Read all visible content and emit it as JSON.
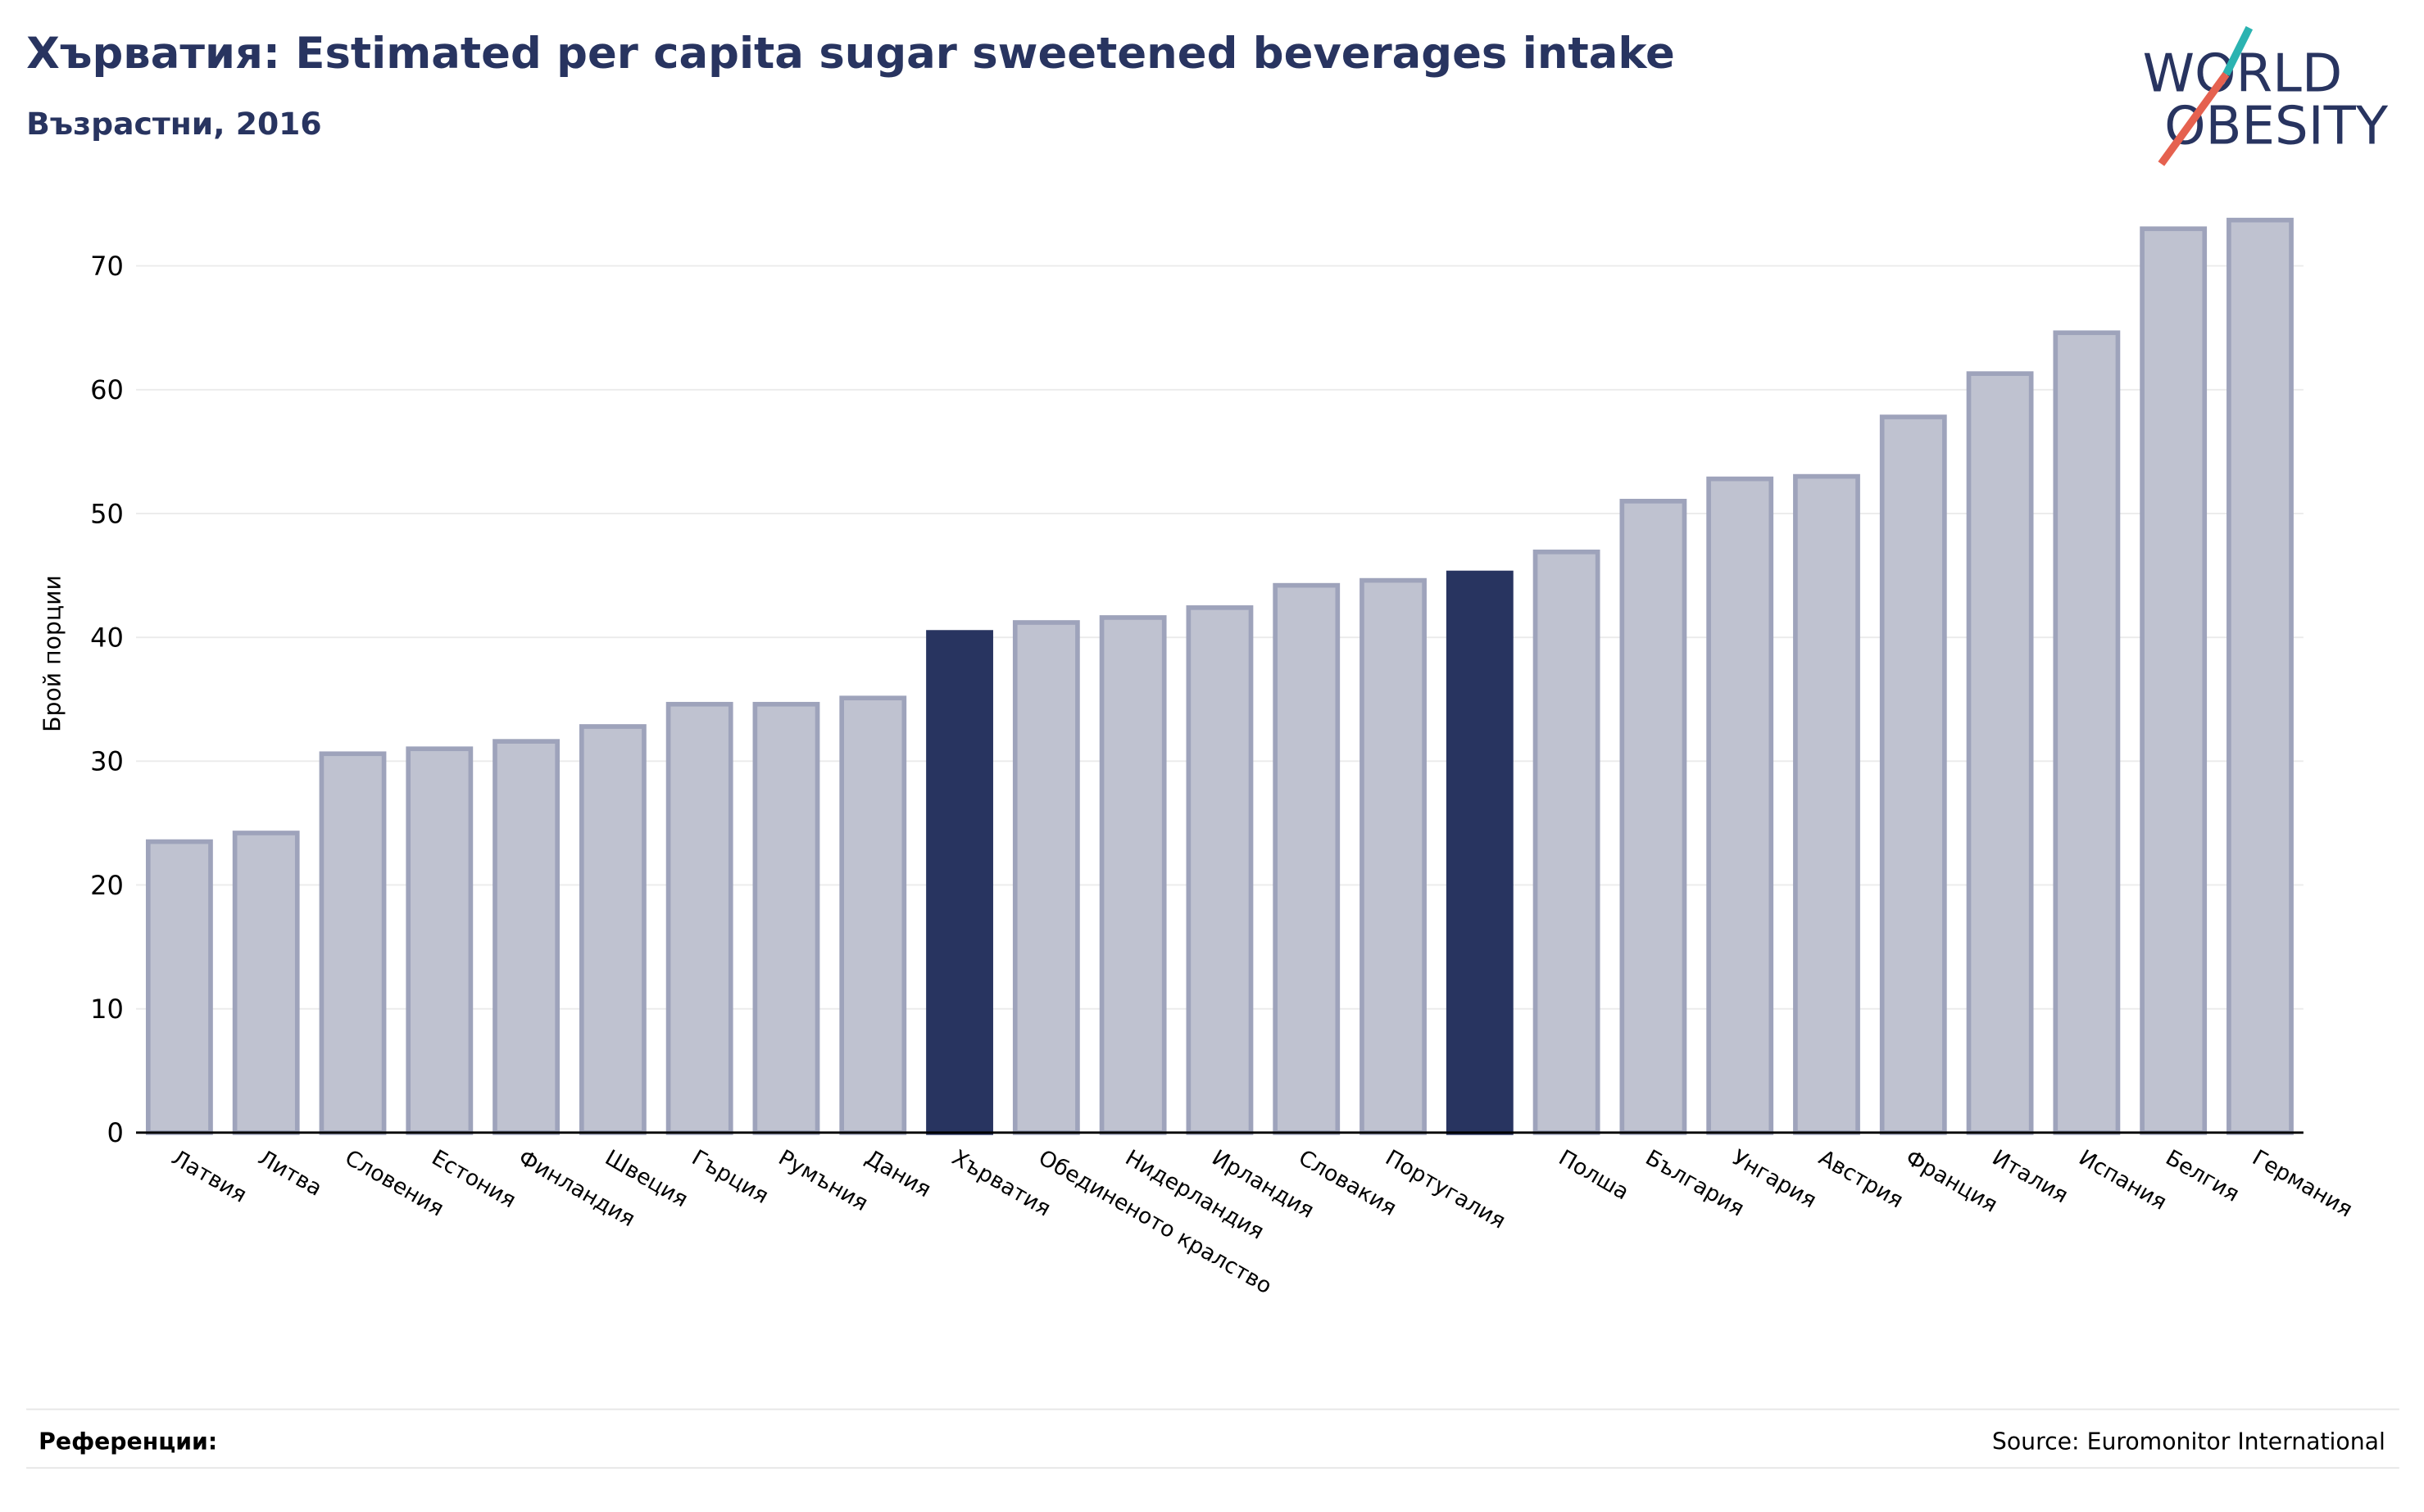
{
  "chart_data": {
    "type": "bar",
    "title": "Хърватия: Estimated per capita sugar sweetened beverages intake",
    "subtitle": "Възрастни, 2016",
    "y_label": "Брой порции",
    "logo": [
      "WORLD",
      "OBESITY"
    ],
    "footer_left": "Референции:",
    "source": "Source: Euromonitor International",
    "categories": [
      "Латвия",
      "Литва",
      "Словения",
      "Естония",
      "Финландия",
      "Швеция",
      "Гърция",
      "Румъния",
      "Дания",
      "Хърватия",
      "Обединеното кралство",
      "Нидерландия",
      "Ирландия",
      "Словакия",
      "Португалия",
      null,
      "Полша",
      "България",
      "Унгария",
      "Австрия",
      "Франция",
      "Италия",
      "Испания",
      "Белгия",
      "Германия"
    ],
    "values": [
      23.5,
      24.2,
      30.6,
      31.0,
      31.6,
      32.8,
      34.6,
      34.6,
      35.1,
      40.4,
      41.2,
      41.6,
      42.4,
      44.2,
      44.6,
      45.2,
      46.9,
      51.0,
      52.8,
      53.0,
      57.8,
      61.3,
      64.6,
      73.0,
      73.7
    ],
    "colors": [
      "#bfc2d0",
      "#bfc2d0",
      "#bfc2d0",
      "#bfc2d0",
      "#bfc2d0",
      "#bfc2d0",
      "#bfc2d0",
      "#bfc2d0",
      "#bfc2d0",
      "#283460",
      "#bfc2d0",
      "#bfc2d0",
      "#bfc2d0",
      "#bfc2d0",
      "#bfc2d0",
      "#283460",
      "#bfc2d0",
      "#bfc2d0",
      "#bfc2d0",
      "#bfc2d0",
      "#bfc2d0",
      "#bfc2d0",
      "#bfc2d0",
      "#bfc2d0",
      "#bfc2d0"
    ],
    "ylim": [
      0,
      74
    ],
    "yticks": [
      0,
      10,
      20,
      30,
      40,
      50,
      60,
      70
    ],
    "grid": true
  }
}
